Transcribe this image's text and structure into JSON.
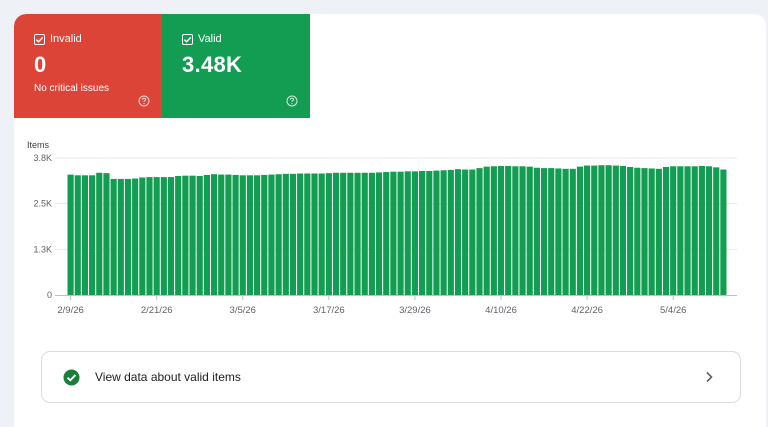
{
  "colors": {
    "invalid": "#db4437",
    "valid": "#129d52",
    "bar": "#129d52"
  },
  "tiles": {
    "invalid": {
      "label": "Invalid",
      "value": "0",
      "subtitle": "No critical issues",
      "icon": "help-icon"
    },
    "valid": {
      "label": "Valid",
      "value": "3.48K",
      "icon": "help-icon"
    }
  },
  "chart_data": {
    "type": "bar",
    "title": "",
    "ylabel": "Items",
    "xlabel": "",
    "ylim": [
      0,
      3800
    ],
    "yticks": [
      {
        "value": 0,
        "label": "0"
      },
      {
        "value": 1266.7,
        "label": "1.3K"
      },
      {
        "value": 2533.3,
        "label": "2.5K"
      },
      {
        "value": 3800,
        "label": "3.8K"
      }
    ],
    "xticks": [
      {
        "index": 0,
        "label": "2/9/26"
      },
      {
        "index": 12,
        "label": "2/21/26"
      },
      {
        "index": 24,
        "label": "3/5/26"
      },
      {
        "index": 36,
        "label": "3/17/26"
      },
      {
        "index": 48,
        "label": "3/29/26"
      },
      {
        "index": 60,
        "label": "4/10/26"
      },
      {
        "index": 72,
        "label": "4/22/26"
      },
      {
        "index": 84,
        "label": "5/4/26"
      }
    ],
    "series": [
      {
        "values": [
          3340,
          3320,
          3320,
          3320,
          3390,
          3380,
          3220,
          3220,
          3220,
          3230,
          3260,
          3270,
          3270,
          3270,
          3270,
          3300,
          3310,
          3310,
          3300,
          3330,
          3350,
          3340,
          3340,
          3330,
          3320,
          3320,
          3320,
          3330,
          3340,
          3350,
          3360,
          3360,
          3370,
          3370,
          3370,
          3370,
          3380,
          3390,
          3390,
          3390,
          3390,
          3390,
          3390,
          3400,
          3410,
          3420,
          3420,
          3430,
          3430,
          3440,
          3440,
          3450,
          3460,
          3470,
          3490,
          3480,
          3480,
          3520,
          3560,
          3570,
          3580,
          3580,
          3570,
          3570,
          3560,
          3530,
          3520,
          3520,
          3510,
          3500,
          3500,
          3560,
          3590,
          3590,
          3600,
          3600,
          3590,
          3580,
          3550,
          3530,
          3520,
          3510,
          3500,
          3550,
          3570,
          3570,
          3570,
          3570,
          3580,
          3570,
          3540,
          3480
        ]
      }
    ],
    "grid": true,
    "legend": "none"
  },
  "footer": {
    "label": "View data about valid items",
    "icon": "check-circle-icon",
    "chevron": "chevron-right-icon"
  }
}
